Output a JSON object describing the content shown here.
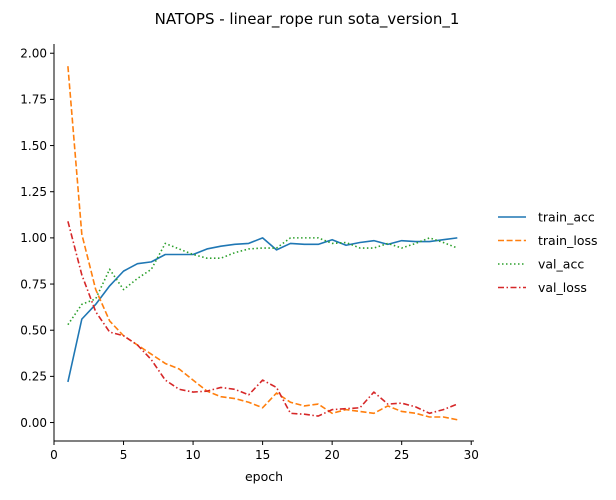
{
  "chart_data": {
    "type": "line",
    "title": "NATOPS - linear_rope run sota_version_1",
    "xlabel": "epoch",
    "ylabel": "",
    "xlim": [
      0,
      30.2
    ],
    "ylim": [
      -0.1,
      2.05
    ],
    "xticks": [
      0,
      5,
      10,
      15,
      20,
      25,
      30
    ],
    "yticks": [
      0.0,
      0.25,
      0.5,
      0.75,
      1.0,
      1.25,
      1.5,
      1.75,
      2.0
    ],
    "ytick_labels": [
      "0.00",
      "0.25",
      "0.50",
      "0.75",
      "1.00",
      "1.25",
      "1.50",
      "1.75",
      "2.00"
    ],
    "grid": false,
    "legend_position": "right",
    "x": [
      1,
      2,
      3,
      4,
      5,
      6,
      7,
      8,
      9,
      10,
      11,
      12,
      13,
      14,
      15,
      16,
      17,
      18,
      19,
      20,
      21,
      22,
      23,
      24,
      25,
      26,
      27,
      28,
      29
    ],
    "series": [
      {
        "name": "train_acc",
        "color": "#1f77b4",
        "dash": "solid",
        "values": [
          0.22,
          0.56,
          0.64,
          0.74,
          0.82,
          0.86,
          0.87,
          0.91,
          0.91,
          0.91,
          0.94,
          0.955,
          0.965,
          0.97,
          1.0,
          0.935,
          0.97,
          0.965,
          0.965,
          0.99,
          0.96,
          0.975,
          0.985,
          0.965,
          0.985,
          0.98,
          0.98,
          0.99,
          1.0
        ]
      },
      {
        "name": "train_loss",
        "color": "#ff7f0e",
        "dash": "dashed",
        "values": [
          1.93,
          1.02,
          0.72,
          0.55,
          0.47,
          0.42,
          0.37,
          0.32,
          0.29,
          0.23,
          0.17,
          0.14,
          0.13,
          0.11,
          0.08,
          0.16,
          0.11,
          0.09,
          0.1,
          0.05,
          0.07,
          0.06,
          0.05,
          0.09,
          0.06,
          0.05,
          0.03,
          0.03,
          0.015
        ]
      },
      {
        "name": "val_acc",
        "color": "#2ca02c",
        "dash": "dotted",
        "values": [
          0.53,
          0.64,
          0.67,
          0.83,
          0.72,
          0.78,
          0.83,
          0.97,
          0.94,
          0.91,
          0.89,
          0.89,
          0.92,
          0.94,
          0.945,
          0.945,
          1.0,
          1.0,
          1.0,
          0.97,
          0.975,
          0.945,
          0.945,
          0.97,
          0.945,
          0.97,
          1.0,
          0.975,
          0.945
        ]
      },
      {
        "name": "val_loss",
        "color": "#d62728",
        "dash": "dashdot",
        "values": [
          1.09,
          0.8,
          0.6,
          0.49,
          0.47,
          0.42,
          0.34,
          0.23,
          0.18,
          0.165,
          0.17,
          0.19,
          0.18,
          0.15,
          0.23,
          0.19,
          0.05,
          0.045,
          0.035,
          0.07,
          0.075,
          0.08,
          0.165,
          0.1,
          0.105,
          0.085,
          0.05,
          0.07,
          0.1
        ]
      }
    ]
  }
}
